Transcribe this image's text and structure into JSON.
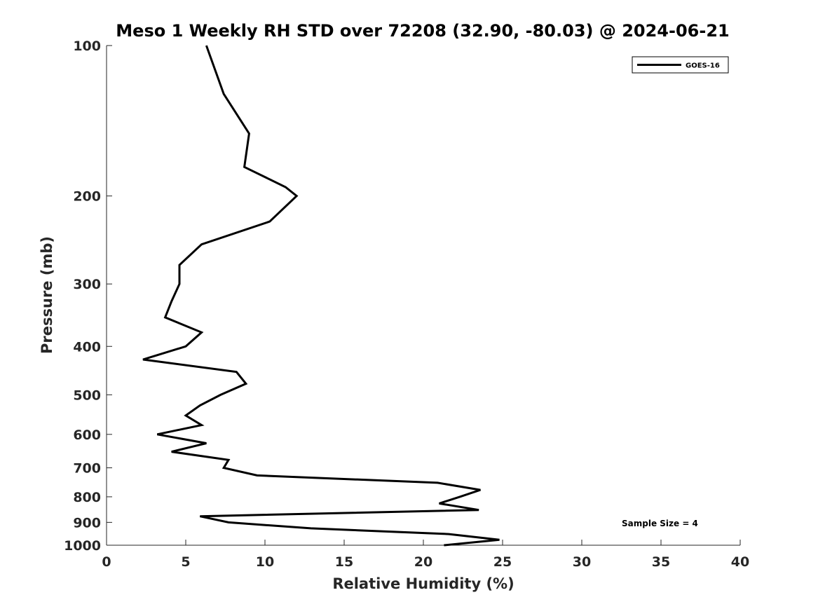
{
  "chart_data": {
    "type": "line",
    "title": "Meso 1 Weekly RH STD over 72208 (32.90, -80.03) @ 2024-06-21",
    "xlabel": "Relative Humidity (%)",
    "ylabel": "Pressure (mb)",
    "xlim": [
      0,
      40
    ],
    "ylim": [
      100,
      1000
    ],
    "y_scale": "log",
    "y_reversed": true,
    "x_ticks": [
      0,
      5,
      10,
      15,
      20,
      25,
      30,
      35,
      40
    ],
    "y_ticks": [
      100,
      200,
      300,
      400,
      500,
      600,
      700,
      800,
      900,
      1000
    ],
    "grid": false,
    "legend_position": "top-right",
    "annotation": "Sample Size = 4",
    "series": [
      {
        "name": "GOES-16",
        "color": "#000000",
        "points": [
          [
            6.3,
            100
          ],
          [
            7.4,
            125
          ],
          [
            9.0,
            150
          ],
          [
            8.7,
            175
          ],
          [
            11.3,
            192
          ],
          [
            12.0,
            200
          ],
          [
            10.3,
            225
          ],
          [
            6.0,
            250
          ],
          [
            4.6,
            275
          ],
          [
            4.6,
            300
          ],
          [
            4.1,
            325
          ],
          [
            3.7,
            350
          ],
          [
            6.0,
            375
          ],
          [
            5.0,
            400
          ],
          [
            2.3,
            425
          ],
          [
            8.2,
            450
          ],
          [
            8.8,
            475
          ],
          [
            7.2,
            500
          ],
          [
            5.9,
            525
          ],
          [
            5.0,
            550
          ],
          [
            6.0,
            575
          ],
          [
            3.2,
            600
          ],
          [
            6.3,
            625
          ],
          [
            4.1,
            650
          ],
          [
            7.7,
            675
          ],
          [
            7.4,
            700
          ],
          [
            9.5,
            725
          ],
          [
            20.9,
            750
          ],
          [
            23.6,
            775
          ],
          [
            22.3,
            800
          ],
          [
            21.0,
            825
          ],
          [
            23.5,
            850
          ],
          [
            5.9,
            875
          ],
          [
            7.7,
            900
          ],
          [
            12.9,
            925
          ],
          [
            21.6,
            950
          ],
          [
            24.8,
            975
          ],
          [
            21.3,
            1000
          ]
        ]
      }
    ]
  }
}
